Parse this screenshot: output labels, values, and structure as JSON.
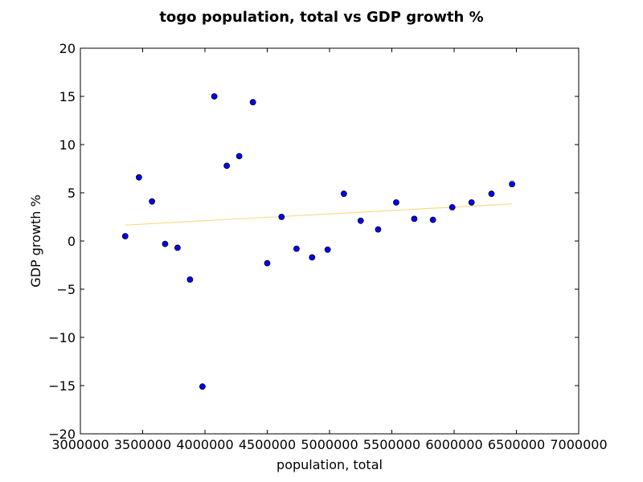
{
  "chart_data": {
    "type": "scatter",
    "title": "togo population, total vs GDP growth %",
    "xlabel": "population, total",
    "ylabel": "GDP growth %",
    "xlim": [
      3000000,
      7000000
    ],
    "ylim": [
      -20,
      20
    ],
    "xticks": [
      3000000,
      3500000,
      4000000,
      4500000,
      5000000,
      5500000,
      6000000,
      6500000,
      7000000
    ],
    "yticks": [
      -20,
      -15,
      -10,
      -5,
      0,
      5,
      10,
      15,
      20
    ],
    "xtick_labels": [
      "3000000",
      "3500000",
      "4000000",
      "4500000",
      "5000000",
      "5500000",
      "6000000",
      "6500000",
      "7000000"
    ],
    "ytick_labels": [
      "−20",
      "−15",
      "−10",
      "−5",
      "0",
      "5",
      "10",
      "15",
      "20"
    ],
    "grid": false,
    "point_color": "#0000ff",
    "trend_color": "#f5dc8c",
    "points": [
      {
        "x": 3360000,
        "y": 0.5
      },
      {
        "x": 3470000,
        "y": 6.6
      },
      {
        "x": 3575000,
        "y": 4.1
      },
      {
        "x": 3680000,
        "y": -0.3
      },
      {
        "x": 3780000,
        "y": -0.7
      },
      {
        "x": 3880000,
        "y": -4.0
      },
      {
        "x": 3980000,
        "y": -15.1
      },
      {
        "x": 4075000,
        "y": 15.0
      },
      {
        "x": 4175000,
        "y": 7.8
      },
      {
        "x": 4275000,
        "y": 8.8
      },
      {
        "x": 4385000,
        "y": 14.4
      },
      {
        "x": 4500000,
        "y": -2.3
      },
      {
        "x": 4615000,
        "y": 2.5
      },
      {
        "x": 4735000,
        "y": -0.8
      },
      {
        "x": 4860000,
        "y": -1.7
      },
      {
        "x": 4985000,
        "y": -0.9
      },
      {
        "x": 5115000,
        "y": 4.9
      },
      {
        "x": 5250000,
        "y": 2.1
      },
      {
        "x": 5390000,
        "y": 1.2
      },
      {
        "x": 5535000,
        "y": 4.0
      },
      {
        "x": 5680000,
        "y": 2.3
      },
      {
        "x": 5830000,
        "y": 2.2
      },
      {
        "x": 5985000,
        "y": 3.5
      },
      {
        "x": 6140000,
        "y": 4.0
      },
      {
        "x": 6300000,
        "y": 4.9
      },
      {
        "x": 6465000,
        "y": 5.9
      }
    ],
    "trendline": {
      "x": [
        3360000,
        6465000
      ],
      "y": [
        1.65,
        3.85
      ]
    }
  }
}
